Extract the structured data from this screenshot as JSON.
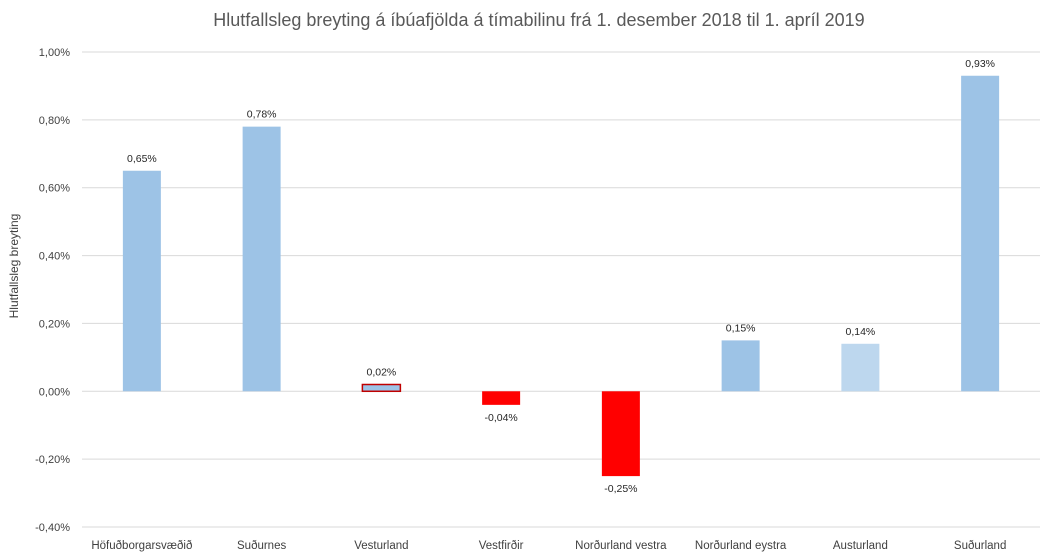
{
  "chart_data": {
    "type": "bar",
    "title": "Hlutfallsleg breyting á íbúafjölda á tímabilinu frá 1. desember 2018 til 1. apríl 2019",
    "xlabel": "",
    "ylabel": "Hlutfallsleg breyting",
    "ylim": [
      -0.4,
      1.0
    ],
    "yticks": [
      -0.4,
      -0.2,
      0.0,
      0.2,
      0.4,
      0.6,
      0.8,
      1.0
    ],
    "ytick_labels": [
      "-0,40%",
      "-0,20%",
      "0,00%",
      "0,20%",
      "0,40%",
      "0,60%",
      "0,80%",
      "1,00%"
    ],
    "grid": true,
    "categories": [
      "Höfuðborgarsvæðið",
      "Suðurnes",
      "Vesturland",
      "Vestfirðir",
      "Norðurland vestra",
      "Norðurland eystra",
      "Austurland",
      "Suðurland"
    ],
    "values": [
      0.65,
      0.78,
      0.02,
      -0.04,
      -0.25,
      0.15,
      0.14,
      0.93
    ],
    "data_labels": [
      "0,65%",
      "0,78%",
      "0,02%",
      "-0,04%",
      "-0,25%",
      "0,15%",
      "0,14%",
      "0,93%"
    ],
    "bar_colors": [
      "#9dc3e6",
      "#9dc3e6",
      "#9dc3e6",
      "#ff0000",
      "#ff0000",
      "#9dc3e6",
      "#bdd7ee",
      "#9dc3e6"
    ],
    "bar_outline_colors": [
      "",
      "",
      "#c00000",
      "",
      "",
      "",
      "",
      ""
    ]
  }
}
